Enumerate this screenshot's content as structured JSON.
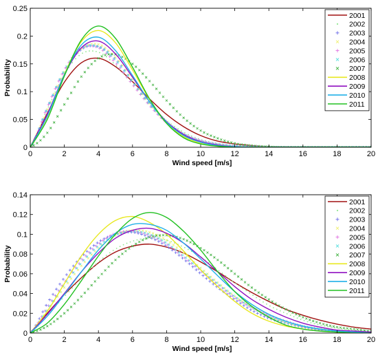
{
  "chart_data": [
    {
      "type": "line",
      "xlabel": "Wind speed [m/s]",
      "ylabel": "Probability",
      "xlim": [
        0,
        20
      ],
      "ylim": [
        0,
        0.25
      ],
      "xticks": [
        "0",
        "2",
        "4",
        "6",
        "8",
        "10",
        "12",
        "14",
        "16",
        "18",
        "20"
      ],
      "yticks": [
        "0",
        "0.05",
        "0.1",
        "0.15",
        "0.2",
        "0.25"
      ],
      "grid": false,
      "legend": "top-right",
      "x": [
        0,
        1,
        2,
        3,
        4,
        5,
        6,
        7,
        8,
        9,
        10,
        11,
        12,
        13,
        14,
        15,
        16,
        17,
        18,
        19,
        20
      ],
      "series": [
        {
          "name": "2001",
          "color": "#a01010",
          "style": "line",
          "values": [
            0,
            0.061,
            0.117,
            0.152,
            0.16,
            0.145,
            0.118,
            0.087,
            0.059,
            0.037,
            0.021,
            0.011,
            0.006,
            0.003,
            0.001,
            0.0005,
            0.0002,
            0,
            0,
            0,
            0
          ]
        },
        {
          "name": "2002",
          "color": "#90e890",
          "style": "dot",
          "values": [
            0,
            0.068,
            0.131,
            0.168,
            0.171,
            0.148,
            0.113,
            0.077,
            0.048,
            0.027,
            0.014,
            0.007,
            0.003,
            0.001,
            0,
            0,
            0,
            0,
            0,
            0,
            0
          ]
        },
        {
          "name": "2003",
          "color": "#6a6ae8",
          "style": "plus",
          "values": [
            0,
            0.07,
            0.137,
            0.176,
            0.181,
            0.158,
            0.119,
            0.078,
            0.045,
            0.023,
            0.011,
            0.005,
            0.002,
            0.001,
            0,
            0,
            0,
            0,
            0,
            0,
            0
          ]
        },
        {
          "name": "2004",
          "color": "#f0f070",
          "style": "cross",
          "values": [
            0,
            0.068,
            0.135,
            0.177,
            0.185,
            0.162,
            0.122,
            0.079,
            0.045,
            0.023,
            0.01,
            0.004,
            0.001,
            0,
            0,
            0,
            0,
            0,
            0,
            0,
            0
          ]
        },
        {
          "name": "2005",
          "color": "#e070e0",
          "style": "plus",
          "values": [
            0,
            0.072,
            0.139,
            0.178,
            0.179,
            0.152,
            0.113,
            0.075,
            0.044,
            0.024,
            0.012,
            0.005,
            0.002,
            0.001,
            0,
            0,
            0,
            0,
            0,
            0,
            0
          ]
        },
        {
          "name": "2006",
          "color": "#60e0e0",
          "style": "cross",
          "values": [
            0,
            0.07,
            0.138,
            0.178,
            0.181,
            0.157,
            0.118,
            0.078,
            0.046,
            0.024,
            0.011,
            0.005,
            0.002,
            0.001,
            0,
            0,
            0,
            0,
            0,
            0,
            0
          ]
        },
        {
          "name": "2007",
          "color": "#40b040",
          "style": "cross",
          "values": [
            0,
            0.026,
            0.077,
            0.127,
            0.16,
            0.167,
            0.15,
            0.119,
            0.084,
            0.053,
            0.03,
            0.016,
            0.007,
            0.003,
            0.001,
            0,
            0,
            0,
            0,
            0,
            0
          ]
        },
        {
          "name": "2008",
          "color": "#e8e820",
          "style": "line",
          "values": [
            0,
            0.055,
            0.131,
            0.19,
            0.21,
            0.188,
            0.139,
            0.086,
            0.044,
            0.019,
            0.007,
            0.002,
            0.001,
            0,
            0,
            0,
            0,
            0,
            0,
            0,
            0
          ]
        },
        {
          "name": "2009",
          "color": "#9010c0",
          "style": "line",
          "values": [
            0,
            0.059,
            0.13,
            0.179,
            0.191,
            0.168,
            0.126,
            0.082,
            0.046,
            0.023,
            0.01,
            0.004,
            0.001,
            0,
            0,
            0,
            0,
            0,
            0,
            0,
            0
          ]
        },
        {
          "name": "2010",
          "color": "#20b0e8",
          "style": "line",
          "values": [
            0,
            0.056,
            0.13,
            0.184,
            0.198,
            0.174,
            0.129,
            0.082,
            0.045,
            0.021,
            0.009,
            0.003,
            0.001,
            0,
            0,
            0,
            0,
            0,
            0,
            0,
            0
          ]
        },
        {
          "name": "2011",
          "color": "#20c020",
          "style": "line",
          "values": [
            0,
            0.05,
            0.128,
            0.193,
            0.218,
            0.196,
            0.144,
            0.087,
            0.043,
            0.017,
            0.006,
            0.002,
            0,
            0,
            0,
            0,
            0,
            0,
            0,
            0,
            0
          ]
        }
      ]
    },
    {
      "type": "line",
      "xlabel": "Wind speed [m/s]",
      "ylabel": "Probability",
      "xlim": [
        0,
        20
      ],
      "ylim": [
        0,
        0.14
      ],
      "xticks": [
        "0",
        "2",
        "4",
        "6",
        "8",
        "10",
        "12",
        "14",
        "16",
        "18",
        "20"
      ],
      "yticks": [
        "0",
        "0.02",
        "0.04",
        "0.06",
        "0.08",
        "0.1",
        "0.12",
        "0.14"
      ],
      "grid": false,
      "legend": "top-right",
      "x": [
        0,
        1,
        2,
        3,
        4,
        5,
        6,
        7,
        8,
        9,
        10,
        11,
        12,
        13,
        14,
        15,
        16,
        17,
        18,
        19,
        20
      ],
      "series": [
        {
          "name": "2001",
          "color": "#a01010",
          "style": "line",
          "values": [
            0,
            0.02,
            0.039,
            0.056,
            0.071,
            0.082,
            0.088,
            0.09,
            0.087,
            0.081,
            0.072,
            0.062,
            0.051,
            0.041,
            0.032,
            0.024,
            0.018,
            0.013,
            0.009,
            0.006,
            0.004
          ]
        },
        {
          "name": "2002",
          "color": "#90e890",
          "style": "dot",
          "values": [
            0,
            0.018,
            0.037,
            0.055,
            0.072,
            0.085,
            0.093,
            0.096,
            0.094,
            0.087,
            0.077,
            0.064,
            0.051,
            0.039,
            0.028,
            0.02,
            0.013,
            0.008,
            0.005,
            0.003,
            0.002
          ]
        },
        {
          "name": "2003",
          "color": "#6a6ae8",
          "style": "plus",
          "values": [
            0,
            0.03,
            0.056,
            0.077,
            0.092,
            0.1,
            0.102,
            0.097,
            0.088,
            0.075,
            0.06,
            0.046,
            0.034,
            0.023,
            0.015,
            0.01,
            0.006,
            0.003,
            0.002,
            0.001,
            0
          ]
        },
        {
          "name": "2004",
          "color": "#f0f070",
          "style": "cross",
          "values": [
            0,
            0.023,
            0.046,
            0.068,
            0.086,
            0.099,
            0.104,
            0.102,
            0.094,
            0.081,
            0.066,
            0.051,
            0.037,
            0.026,
            0.017,
            0.011,
            0.006,
            0.004,
            0.002,
            0.001,
            0
          ]
        },
        {
          "name": "2005",
          "color": "#e070e0",
          "style": "plus",
          "values": [
            0,
            0.026,
            0.051,
            0.073,
            0.09,
            0.101,
            0.103,
            0.099,
            0.09,
            0.077,
            0.063,
            0.049,
            0.036,
            0.026,
            0.018,
            0.012,
            0.007,
            0.004,
            0.002,
            0.001,
            0
          ]
        },
        {
          "name": "2006",
          "color": "#60e0e0",
          "style": "cross",
          "values": [
            0,
            0.024,
            0.049,
            0.071,
            0.088,
            0.099,
            0.103,
            0.1,
            0.091,
            0.078,
            0.064,
            0.05,
            0.037,
            0.026,
            0.017,
            0.011,
            0.007,
            0.004,
            0.002,
            0.001,
            0
          ]
        },
        {
          "name": "2007",
          "color": "#40b040",
          "style": "cross",
          "values": [
            0,
            0.007,
            0.02,
            0.037,
            0.056,
            0.074,
            0.088,
            0.097,
            0.099,
            0.095,
            0.086,
            0.074,
            0.06,
            0.046,
            0.034,
            0.024,
            0.016,
            0.01,
            0.006,
            0.004,
            0.002
          ]
        },
        {
          "name": "2008",
          "color": "#e8e820",
          "style": "line",
          "values": [
            0,
            0.022,
            0.05,
            0.078,
            0.1,
            0.114,
            0.118,
            0.112,
            0.1,
            0.083,
            0.064,
            0.047,
            0.032,
            0.02,
            0.012,
            0.007,
            0.004,
            0.002,
            0.001,
            0,
            0
          ]
        },
        {
          "name": "2009",
          "color": "#9010c0",
          "style": "line",
          "values": [
            0,
            0.019,
            0.04,
            0.062,
            0.081,
            0.096,
            0.104,
            0.106,
            0.101,
            0.091,
            0.077,
            0.062,
            0.047,
            0.034,
            0.024,
            0.016,
            0.01,
            0.006,
            0.003,
            0.002,
            0.001
          ]
        },
        {
          "name": "2010",
          "color": "#20b0e8",
          "style": "line",
          "values": [
            0,
            0.017,
            0.039,
            0.062,
            0.084,
            0.101,
            0.11,
            0.11,
            0.104,
            0.091,
            0.075,
            0.058,
            0.042,
            0.029,
            0.019,
            0.012,
            0.007,
            0.004,
            0.002,
            0.001,
            0
          ]
        },
        {
          "name": "2011",
          "color": "#20c020",
          "style": "line",
          "values": [
            0,
            0.01,
            0.029,
            0.053,
            0.078,
            0.1,
            0.116,
            0.122,
            0.117,
            0.103,
            0.084,
            0.062,
            0.042,
            0.027,
            0.016,
            0.008,
            0.004,
            0.002,
            0.001,
            0,
            0
          ]
        }
      ]
    }
  ]
}
